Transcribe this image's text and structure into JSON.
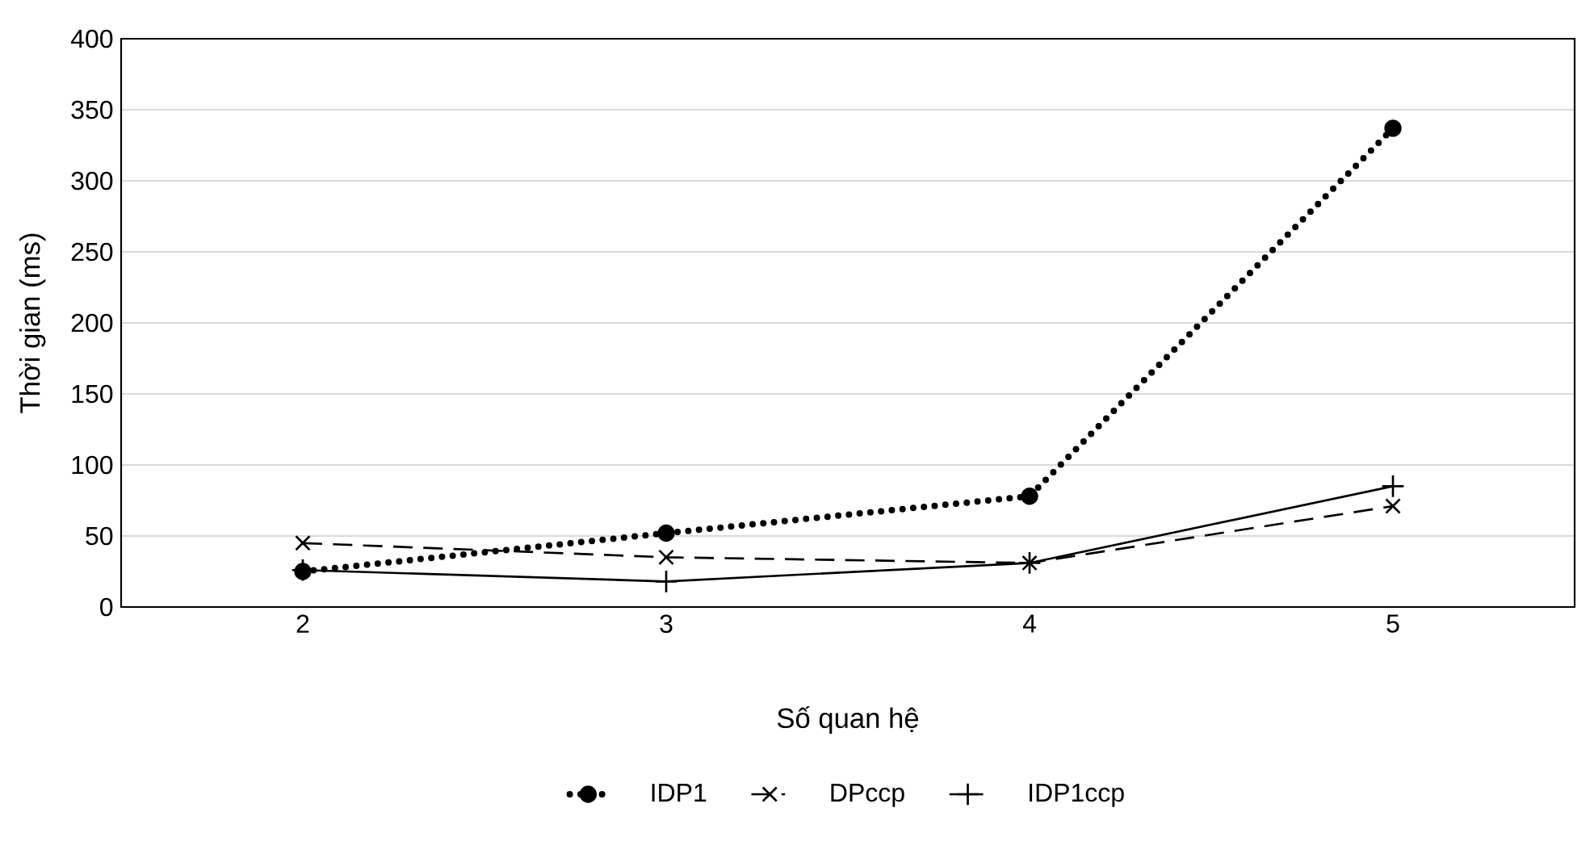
{
  "chart_data": {
    "type": "line",
    "xlabel": "Số quan hệ",
    "ylabel": "Thời gian (ms)",
    "categories": [
      "2",
      "3",
      "4",
      "5"
    ],
    "series": [
      {
        "name": "IDP1",
        "color": "#000000",
        "values": [
          25,
          52,
          78,
          337
        ],
        "marker": "circle",
        "line_style": "dotted"
      },
      {
        "name": "DPccp",
        "color": "#000000",
        "values": [
          45,
          35,
          31,
          71
        ],
        "marker": "cross",
        "line_style": "dashed"
      },
      {
        "name": "IDP1ccp",
        "color": "#000000",
        "values": [
          26,
          18,
          31,
          85
        ],
        "marker": "plus",
        "line_style": "solid"
      }
    ],
    "ylim": [
      0,
      400
    ],
    "yticks": [
      0,
      50,
      100,
      150,
      200,
      250,
      300,
      350,
      400
    ],
    "grid": "y",
    "legend": "bottom"
  }
}
